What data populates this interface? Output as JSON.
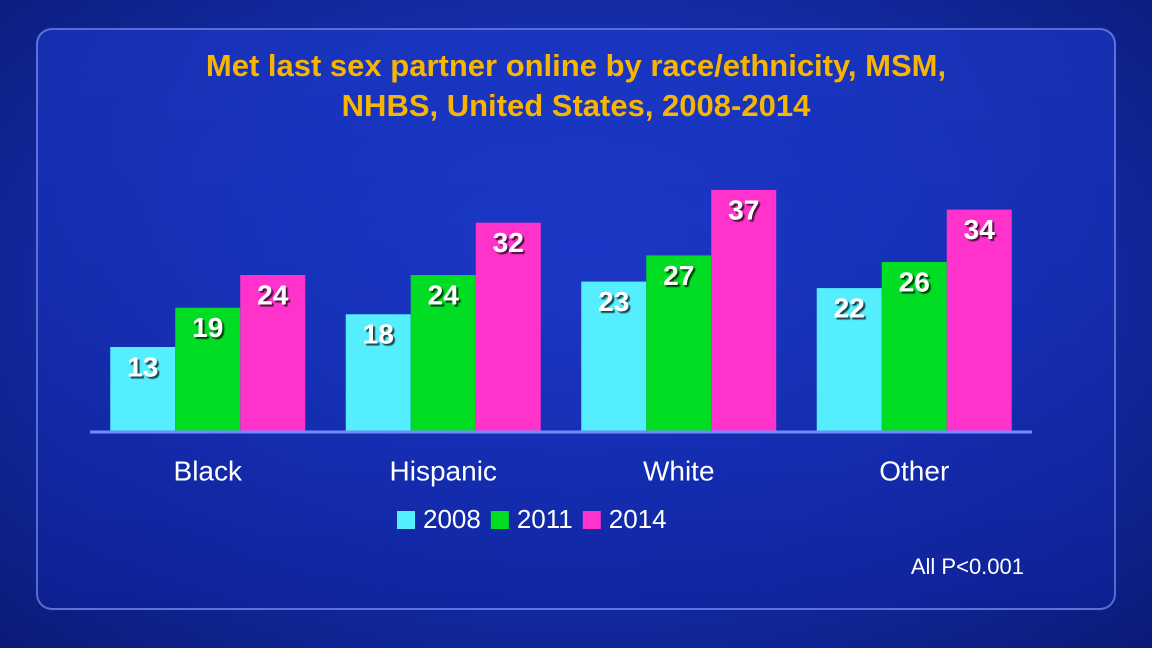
{
  "chart_data": {
    "type": "bar",
    "title": "Met last sex partner online by race/ethnicity, MSM,\nNHBS, United States, 2008-2014",
    "categories": [
      "Black",
      "Hispanic",
      "White",
      "Other"
    ],
    "series": [
      {
        "name": "2008",
        "color": "#55eeff",
        "values": [
          13,
          18,
          23,
          22
        ]
      },
      {
        "name": "2011",
        "color": "#00dd22",
        "values": [
          19,
          24,
          27,
          26
        ]
      },
      {
        "name": "2014",
        "color": "#ff33cc",
        "values": [
          24,
          32,
          37,
          34
        ]
      }
    ],
    "annotation": "All P<0.001"
  }
}
